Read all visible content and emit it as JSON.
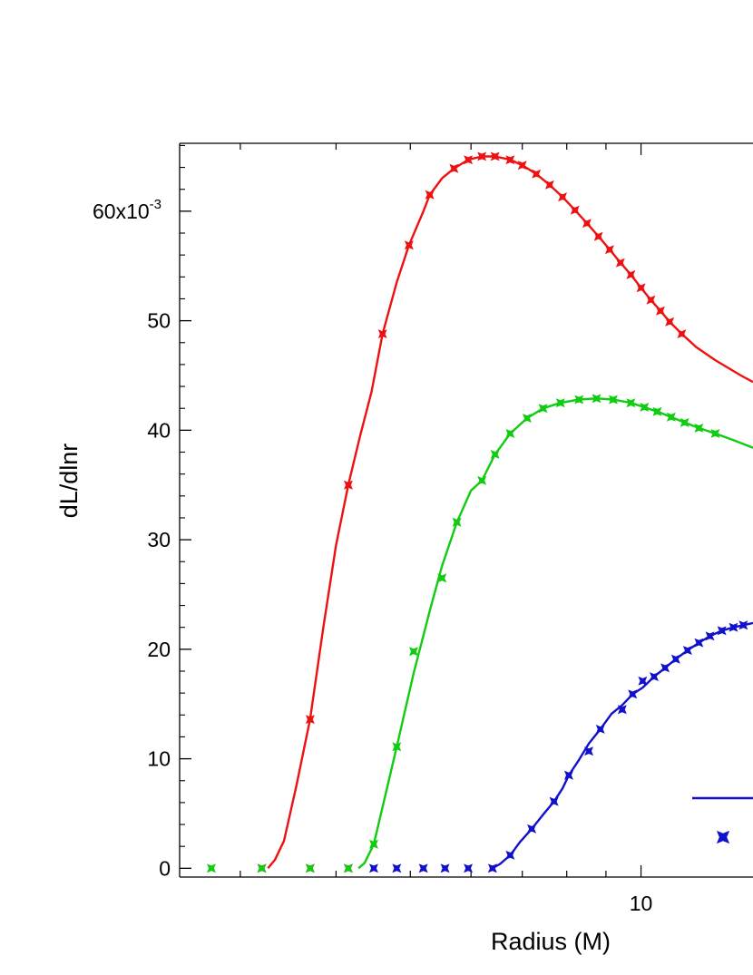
{
  "chart_data": {
    "type": "line",
    "xlabel": "Radius (M)",
    "ylabel": "dL/dlnr",
    "x_scale": "log",
    "xlim": [
      2.5,
      14
    ],
    "ylim": [
      -0.0008,
      0.0662
    ],
    "x_ticks": [
      {
        "value": 10,
        "label": "10"
      }
    ],
    "y_ticks": [
      {
        "value": 0,
        "label": "0"
      },
      {
        "value": 0.01,
        "label": "10"
      },
      {
        "value": 0.02,
        "label": "20"
      },
      {
        "value": 0.03,
        "label": "30"
      },
      {
        "value": 0.04,
        "label": "40"
      },
      {
        "value": 0.05,
        "label": "50"
      },
      {
        "value": 0.06,
        "label": "60x10",
        "exponent": "-3"
      }
    ],
    "grid": false,
    "legend_position": "bottom-right",
    "series": [
      {
        "color": "#ee1111",
        "line": [
          [
            3.26,
            0
          ],
          [
            3.33,
            0.0008
          ],
          [
            3.42,
            0.0025
          ],
          [
            3.55,
            0.0075
          ],
          [
            3.7,
            0.0136
          ],
          [
            3.85,
            0.022
          ],
          [
            4.0,
            0.0295
          ],
          [
            4.15,
            0.035
          ],
          [
            4.3,
            0.0395
          ],
          [
            4.45,
            0.0435
          ],
          [
            4.6,
            0.0488
          ],
          [
            4.8,
            0.0535
          ],
          [
            4.98,
            0.0569
          ],
          [
            5.2,
            0.06
          ],
          [
            5.3,
            0.0615
          ],
          [
            5.5,
            0.063
          ],
          [
            5.7,
            0.0639
          ],
          [
            5.95,
            0.0647
          ],
          [
            6.2,
            0.065
          ],
          [
            6.45,
            0.065
          ],
          [
            6.75,
            0.0647
          ],
          [
            7.0,
            0.0642
          ],
          [
            7.3,
            0.0634
          ],
          [
            7.6,
            0.0624
          ],
          [
            7.9,
            0.0613
          ],
          [
            8.2,
            0.0601
          ],
          [
            8.5,
            0.0589
          ],
          [
            8.8,
            0.0577
          ],
          [
            9.1,
            0.0565
          ],
          [
            9.4,
            0.0553
          ],
          [
            9.7,
            0.0542
          ],
          [
            10.0,
            0.053
          ],
          [
            10.3,
            0.0519
          ],
          [
            10.6,
            0.0509
          ],
          [
            10.9,
            0.0499
          ],
          [
            11.3,
            0.0488
          ],
          [
            11.8,
            0.0476
          ],
          [
            12.5,
            0.0464
          ],
          [
            13.5,
            0.045
          ],
          [
            14.0,
            0.0444
          ]
        ],
        "points": [
          [
            3.7,
            0.0136
          ],
          [
            4.15,
            0.035
          ],
          [
            4.6,
            0.0488
          ],
          [
            4.98,
            0.0569
          ],
          [
            5.3,
            0.0615
          ],
          [
            5.7,
            0.0639
          ],
          [
            5.95,
            0.0647
          ],
          [
            6.2,
            0.065
          ],
          [
            6.45,
            0.065
          ],
          [
            6.75,
            0.0647
          ],
          [
            7.0,
            0.0642
          ],
          [
            7.3,
            0.0634
          ],
          [
            7.6,
            0.0624
          ],
          [
            7.9,
            0.0613
          ],
          [
            8.2,
            0.0601
          ],
          [
            8.5,
            0.0589
          ],
          [
            8.8,
            0.0577
          ],
          [
            9.1,
            0.0565
          ],
          [
            9.4,
            0.0553
          ],
          [
            9.7,
            0.0542
          ],
          [
            10.0,
            0.053
          ],
          [
            10.3,
            0.0519
          ],
          [
            10.6,
            0.0509
          ],
          [
            10.9,
            0.0499
          ],
          [
            11.3,
            0.0488
          ]
        ],
        "zero_points": [
          3.2,
          3.7,
          4.15
        ]
      },
      {
        "color": "#11cc11",
        "line": [
          [
            4.28,
            0
          ],
          [
            4.36,
            0.0005
          ],
          [
            4.48,
            0.0022
          ],
          [
            4.65,
            0.007
          ],
          [
            4.8,
            0.0111
          ],
          [
            5.05,
            0.0178
          ],
          [
            5.3,
            0.0235
          ],
          [
            5.5,
            0.0276
          ],
          [
            5.75,
            0.0316
          ],
          [
            6.0,
            0.0345
          ],
          [
            6.2,
            0.0354
          ],
          [
            6.45,
            0.0378
          ],
          [
            6.75,
            0.0397
          ],
          [
            7.1,
            0.0411
          ],
          [
            7.45,
            0.042
          ],
          [
            7.85,
            0.0425
          ],
          [
            8.3,
            0.0428
          ],
          [
            8.75,
            0.0429
          ],
          [
            9.2,
            0.0428
          ],
          [
            9.7,
            0.0425
          ],
          [
            10.1,
            0.0421
          ],
          [
            10.5,
            0.0417
          ],
          [
            10.95,
            0.0412
          ],
          [
            11.4,
            0.0407
          ],
          [
            11.9,
            0.0402
          ],
          [
            12.5,
            0.0397
          ],
          [
            13.2,
            0.0391
          ],
          [
            14.0,
            0.0384
          ]
        ],
        "points": [
          [
            4.48,
            0.0022
          ],
          [
            4.8,
            0.0111
          ],
          [
            5.05,
            0.0198
          ],
          [
            5.5,
            0.0265
          ],
          [
            5.75,
            0.0316
          ],
          [
            6.2,
            0.0354
          ],
          [
            6.45,
            0.0378
          ],
          [
            6.75,
            0.0397
          ],
          [
            7.1,
            0.0411
          ],
          [
            7.45,
            0.042
          ],
          [
            7.85,
            0.0425
          ],
          [
            8.3,
            0.0428
          ],
          [
            8.75,
            0.0429
          ],
          [
            9.2,
            0.0428
          ],
          [
            9.7,
            0.0425
          ],
          [
            10.1,
            0.0421
          ],
          [
            10.5,
            0.0417
          ],
          [
            10.95,
            0.0412
          ],
          [
            11.4,
            0.0407
          ],
          [
            11.9,
            0.0402
          ],
          [
            12.5,
            0.0397
          ]
        ],
        "zero_points": [
          2.75,
          3.2,
          3.7,
          4.15
        ]
      },
      {
        "color": "#1111cc",
        "line": [
          [
            6.4,
            0
          ],
          [
            6.55,
            0.0004
          ],
          [
            6.75,
            0.0012
          ],
          [
            6.95,
            0.0024
          ],
          [
            7.2,
            0.0036
          ],
          [
            7.45,
            0.0049
          ],
          [
            7.7,
            0.0061
          ],
          [
            7.9,
            0.0073
          ],
          [
            8.05,
            0.0085
          ],
          [
            8.3,
            0.0099
          ],
          [
            8.55,
            0.0114
          ],
          [
            8.85,
            0.0127
          ],
          [
            9.15,
            0.0141
          ],
          [
            9.45,
            0.0149
          ],
          [
            9.75,
            0.0159
          ],
          [
            10.05,
            0.0165
          ],
          [
            10.4,
            0.0175
          ],
          [
            10.75,
            0.0183
          ],
          [
            11.1,
            0.0191
          ],
          [
            11.5,
            0.0199
          ],
          [
            11.9,
            0.0206
          ],
          [
            12.3,
            0.0212
          ],
          [
            12.75,
            0.0217
          ],
          [
            13.2,
            0.022
          ],
          [
            13.6,
            0.0222
          ],
          [
            14.0,
            0.0224
          ]
        ],
        "points": [
          [
            6.75,
            0.0012
          ],
          [
            7.2,
            0.0036
          ],
          [
            7.7,
            0.0061
          ],
          [
            8.05,
            0.0085
          ],
          [
            8.55,
            0.0107
          ],
          [
            8.85,
            0.0127
          ],
          [
            9.45,
            0.0145
          ],
          [
            9.75,
            0.0159
          ],
          [
            10.05,
            0.0171
          ],
          [
            10.4,
            0.0175
          ],
          [
            10.75,
            0.0183
          ],
          [
            11.1,
            0.0191
          ],
          [
            11.5,
            0.0199
          ],
          [
            11.9,
            0.0206
          ],
          [
            12.3,
            0.0212
          ],
          [
            12.75,
            0.0217
          ],
          [
            13.2,
            0.022
          ],
          [
            13.6,
            0.0222
          ]
        ],
        "zero_points": [
          4.48,
          4.8,
          5.2,
          5.55,
          5.95,
          6.4
        ]
      }
    ],
    "legend": {
      "line_color": "#1111cc",
      "marker_color": "#1111cc"
    }
  }
}
